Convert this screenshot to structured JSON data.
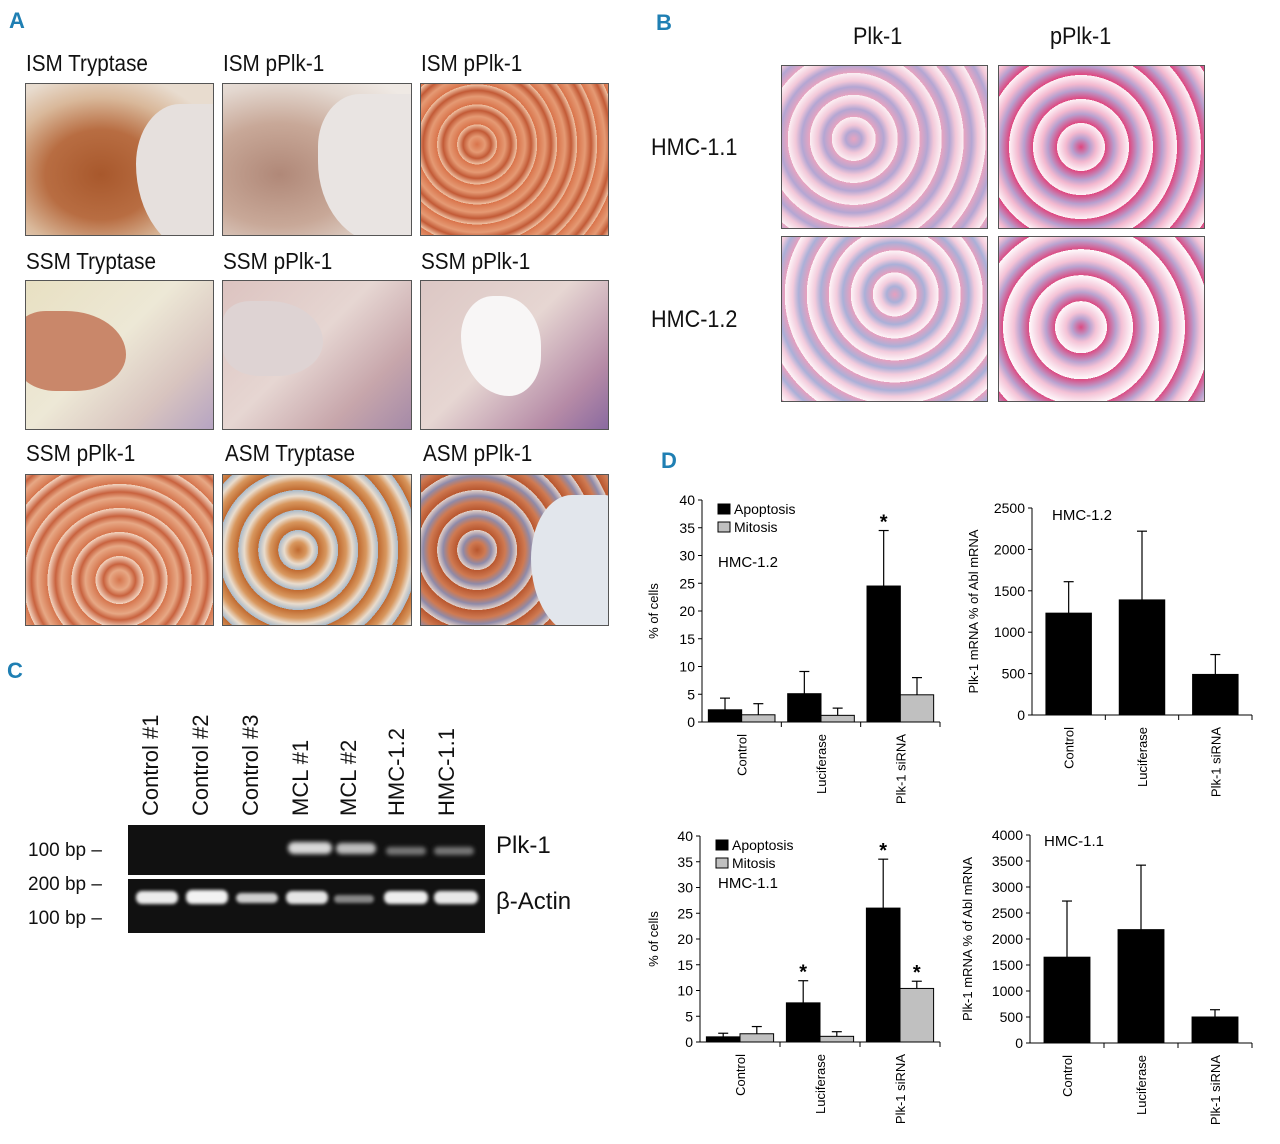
{
  "panels": {
    "A": {
      "letter": "A",
      "titles": [
        "ISM Tryptase",
        "ISM pPlk-1",
        "ISM pPlk-1",
        "SSM Tryptase",
        "SSM pPlk-1",
        "SSM pPlk-1",
        "SSM pPlk-1",
        "ASM Tryptase",
        "ASM pPlk-1"
      ]
    },
    "B": {
      "letter": "B",
      "col1": "Plk-1",
      "col2": "pPlk-1",
      "row1": "HMC-1.1",
      "row2": "HMC-1.2"
    },
    "C": {
      "letter": "C",
      "lanes": [
        "Control #1",
        "Control #2",
        "Control #3",
        "MCL #1",
        "MCL #2",
        "HMC-1.2",
        "HMC-1.1"
      ],
      "marker_100a": "100 bp –",
      "marker_200": "200 bp –",
      "marker_100b": "100 bp –",
      "band_plk": "Plk-1",
      "band_actin": "β-Actin"
    },
    "D": {
      "letter": "D"
    }
  },
  "chart_data": [
    {
      "type": "bar",
      "title": "HMC-1.2",
      "categories": [
        "Control",
        "Luciferase",
        "Plk-1 siRNA"
      ],
      "ylabel": "% of cells",
      "ylim": [
        0,
        40
      ],
      "yticks": [
        0,
        5,
        10,
        15,
        20,
        25,
        30,
        35,
        40
      ],
      "series": [
        {
          "name": "Apoptosis",
          "values": [
            2.2,
            5.1,
            24.5
          ],
          "errors": [
            2.1,
            4.0,
            10.0
          ],
          "color": "#000000"
        },
        {
          "name": "Mitosis",
          "values": [
            1.3,
            1.2,
            4.9
          ],
          "errors": [
            2.0,
            1.3,
            3.1
          ],
          "color": "#c0c0c0"
        }
      ],
      "significance": [
        [
          false,
          false,
          true
        ],
        [
          false,
          false,
          false
        ]
      ],
      "star": "*",
      "legend": "top-left"
    },
    {
      "type": "bar",
      "title": "HMC-1.2",
      "categories": [
        "Control",
        "Luciferase",
        "Plk-1 siRNA"
      ],
      "ylabel": "Plk-1 mRNA % of Abl mRNA",
      "ylim": [
        0,
        2500
      ],
      "yticks": [
        0,
        500,
        1000,
        1500,
        2000,
        2500
      ],
      "series": [
        {
          "values": [
            1230,
            1390,
            490
          ],
          "errors": [
            380,
            830,
            240
          ],
          "color": "#000000"
        }
      ]
    },
    {
      "type": "bar",
      "title": "HMC-1.1",
      "categories": [
        "Control",
        "Luciferase",
        "Plk-1 siRNA"
      ],
      "ylabel": "% of cells",
      "ylim": [
        0,
        40
      ],
      "yticks": [
        0,
        5,
        10,
        15,
        20,
        25,
        30,
        35,
        40
      ],
      "series": [
        {
          "name": "Apoptosis",
          "values": [
            1.0,
            7.6,
            26.0
          ],
          "errors": [
            0.7,
            4.3,
            9.5
          ],
          "color": "#000000"
        },
        {
          "name": "Mitosis",
          "values": [
            1.6,
            1.1,
            10.4
          ],
          "errors": [
            1.4,
            0.9,
            1.4
          ],
          "color": "#c0c0c0"
        }
      ],
      "significance": [
        [
          false,
          true,
          true
        ],
        [
          false,
          false,
          true
        ]
      ],
      "star": "*",
      "legend": "top-left"
    },
    {
      "type": "bar",
      "title": "HMC-1.1",
      "categories": [
        "Control",
        "Luciferase",
        "Plk-1 siRNA"
      ],
      "ylabel": "Plk-1 mRNA % of Abl mRNA",
      "ylim": [
        0,
        4000
      ],
      "yticks": [
        0,
        500,
        1000,
        1500,
        2000,
        2500,
        3000,
        3500,
        4000
      ],
      "series": [
        {
          "values": [
            1650,
            2180,
            500
          ],
          "errors": [
            1080,
            1240,
            140
          ],
          "color": "#000000"
        }
      ]
    }
  ]
}
